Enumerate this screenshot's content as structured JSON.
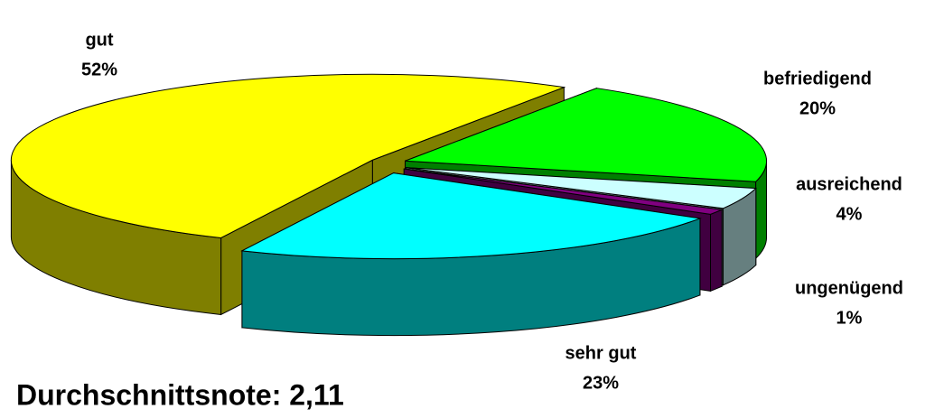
{
  "chart_data": {
    "type": "pie3d",
    "categories": [
      "sehr gut",
      "gut",
      "befriedigend",
      "ausreichend",
      "ungenügend"
    ],
    "values": [
      23,
      52,
      20,
      4,
      1
    ],
    "value_labels": [
      "23%",
      "52%",
      "20%",
      "4%",
      "1%"
    ],
    "colors": [
      "#00ffff",
      "#ffff00",
      "#00ff00",
      "#ccffff",
      "#800080"
    ],
    "annotation": "Durchschnittsnote: 2,11"
  }
}
